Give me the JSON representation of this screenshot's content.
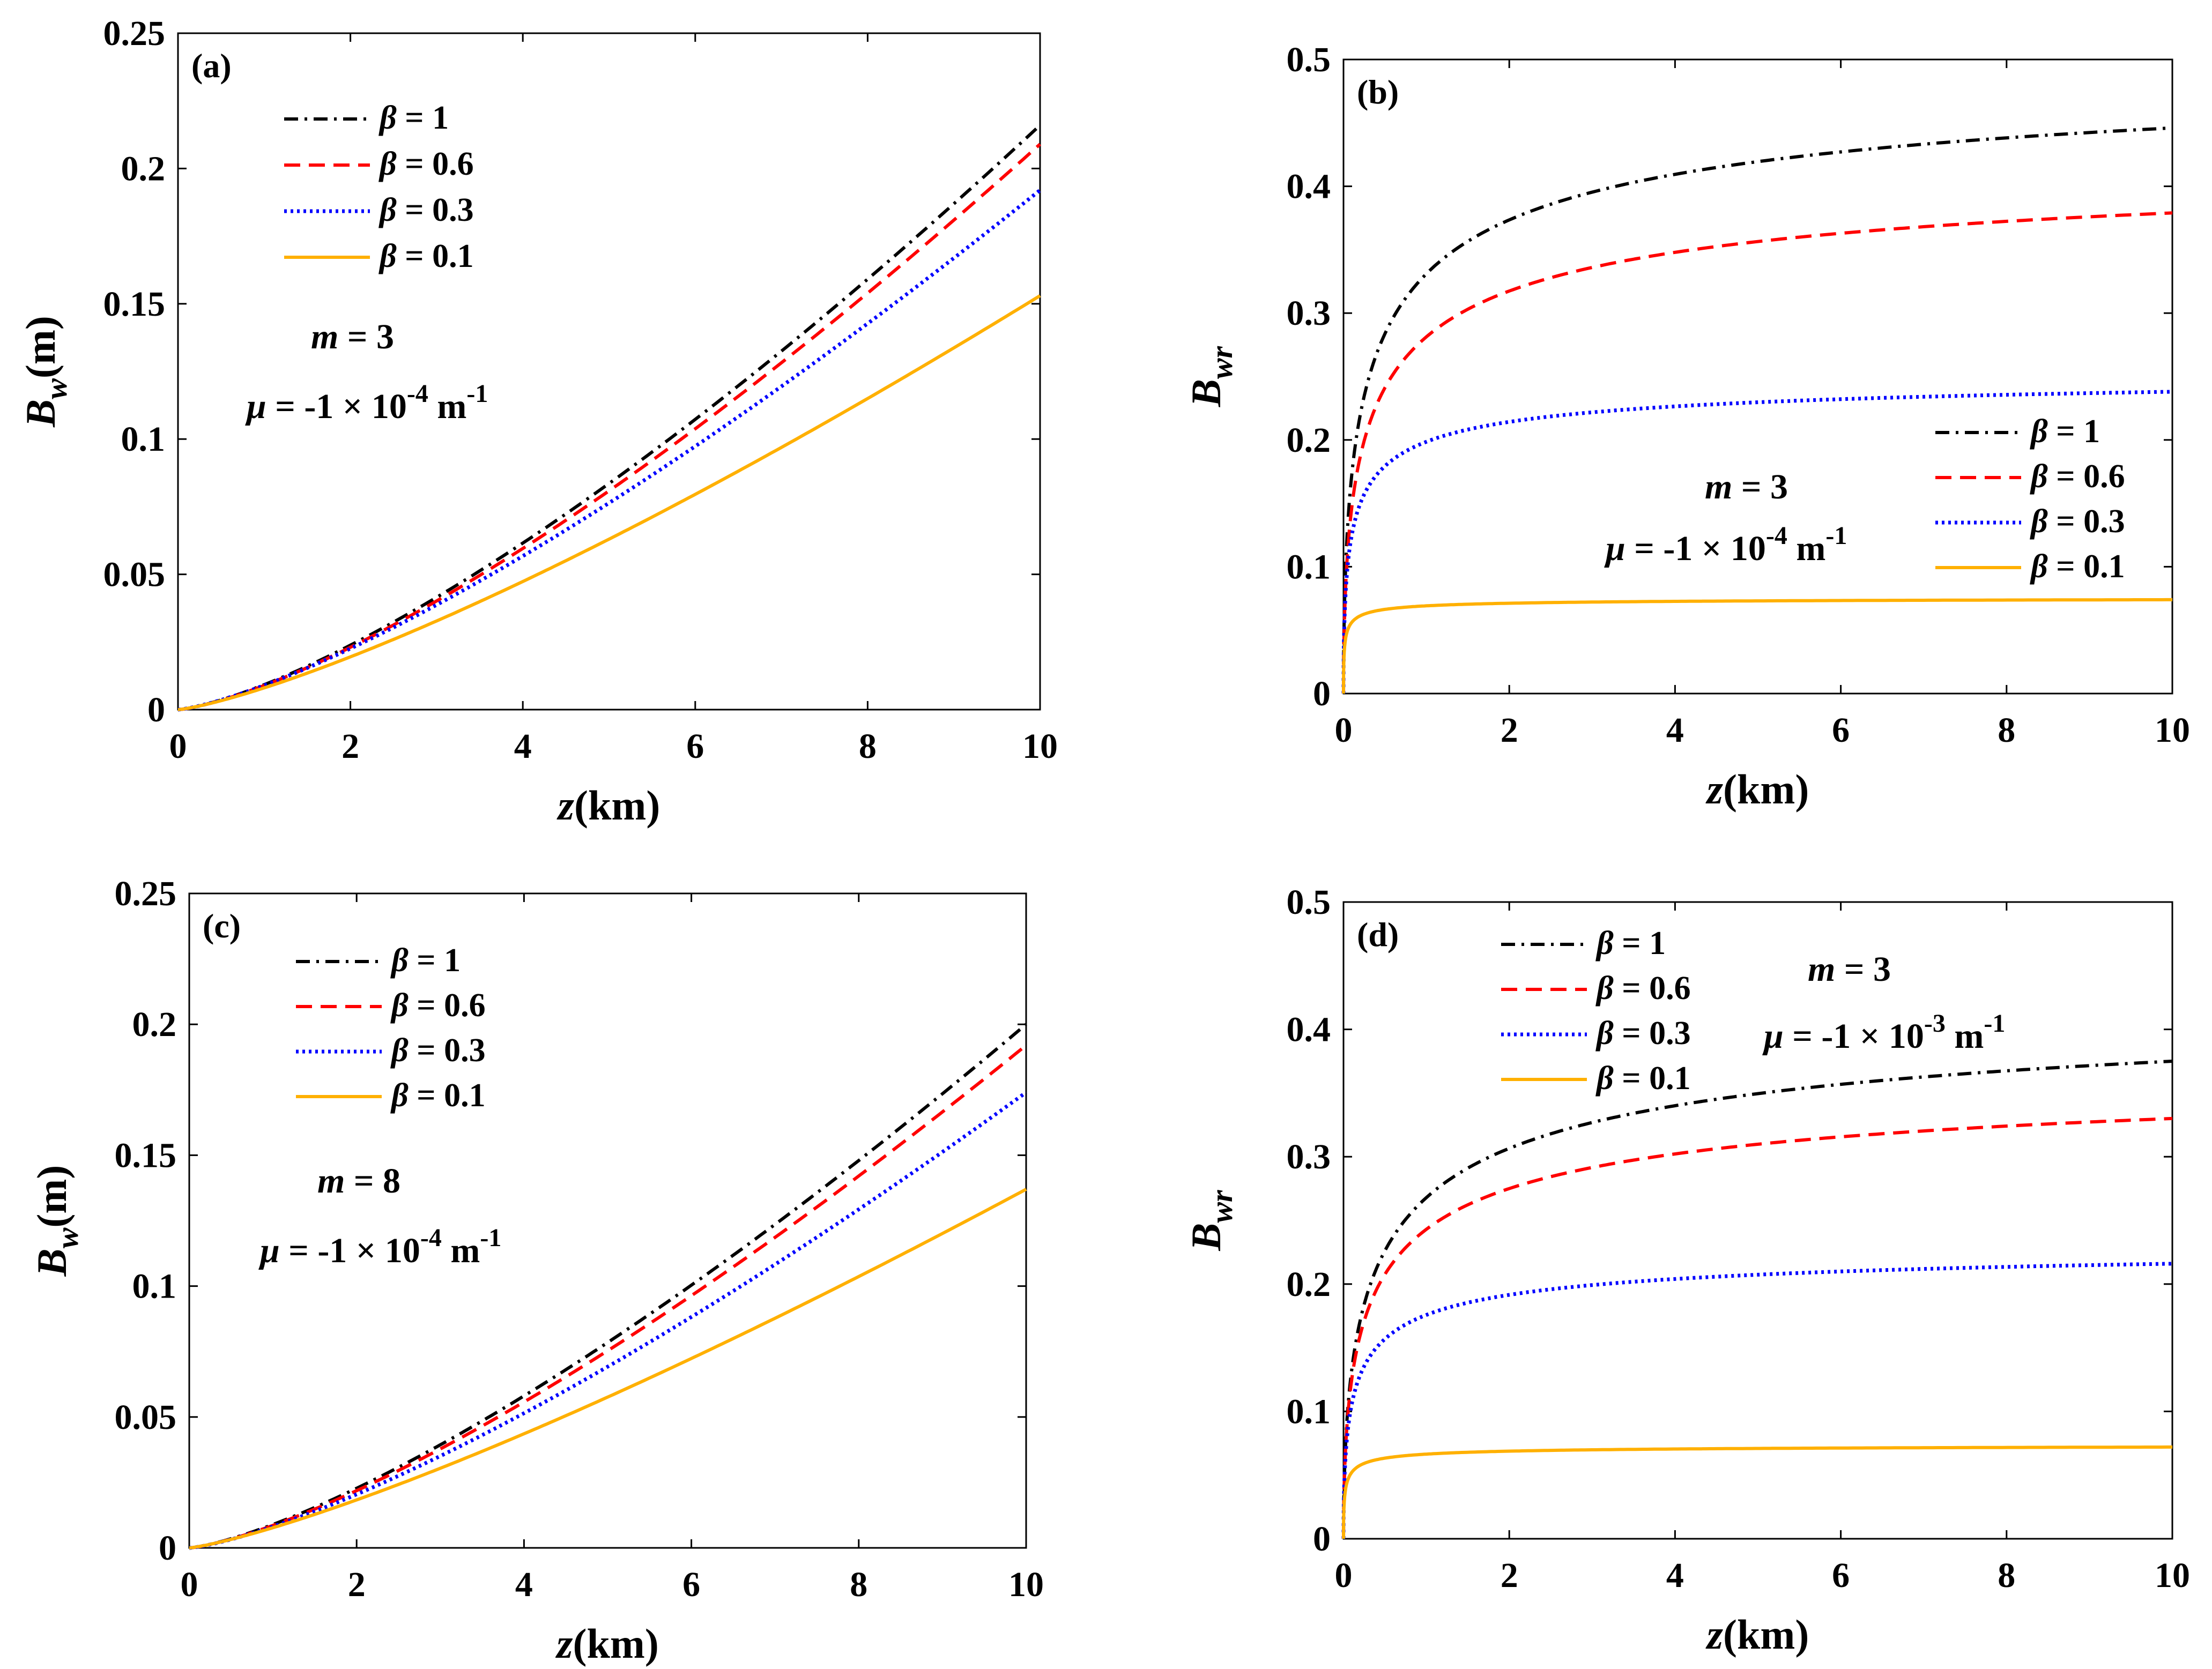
{
  "colors": {
    "beta_1": "#000000",
    "beta_0_6": "#ff0000",
    "beta_0_3": "#0000ff",
    "beta_0_1": "#ffb000"
  },
  "chart_data": [
    {
      "type": "line",
      "panel": "(a)",
      "xlabel": {
        "var": "z",
        "unit": "(km)"
      },
      "ylabel": {
        "main": "B",
        "sub": "w",
        "unit": "(m)"
      },
      "xlim": [
        0,
        10
      ],
      "ylim": [
        0,
        0.25
      ],
      "xticks": [
        "0",
        "2",
        "4",
        "6",
        "8",
        "10"
      ],
      "yticks": [
        "0",
        "0.05",
        "0.1",
        "0.15",
        "0.2",
        "0.25"
      ],
      "legend_position": "top-left",
      "annotation": {
        "m_label": "m",
        "m_value": "= 3",
        "mu_label": "μ",
        "mu_value": "= -1 × 10",
        "mu_exp": "-4",
        "mu_unit": "m",
        "mu_unit_exp": "-1"
      },
      "series": [
        {
          "name": "β = 1",
          "label": "= 1",
          "style": "dashdot",
          "color": "#000000",
          "shape": "pow",
          "end": 0.216,
          "power": 1.37
        },
        {
          "name": "β = 0.6",
          "label": "= 0.6",
          "style": "dashed",
          "color": "#ff0000",
          "shape": "pow",
          "end": 0.209,
          "power": 1.37
        },
        {
          "name": "β = 0.3",
          "label": "= 0.3",
          "style": "dotted",
          "color": "#0000ff",
          "shape": "pow",
          "end": 0.192,
          "power": 1.33
        },
        {
          "name": "β = 0.1",
          "label": "= 0.1",
          "style": "solid",
          "color": "#ffb000",
          "shape": "pow",
          "end": 0.153,
          "power": 1.28
        }
      ]
    },
    {
      "type": "line",
      "panel": "(b)",
      "xlabel": {
        "var": "z",
        "unit": "(km)"
      },
      "ylabel": {
        "main": "B",
        "sub": "wr",
        "unit": ""
      },
      "xlim": [
        0,
        10
      ],
      "ylim": [
        0,
        0.5
      ],
      "xticks": [
        "0",
        "2",
        "4",
        "6",
        "8",
        "10"
      ],
      "yticks": [
        "0",
        "0.1",
        "0.2",
        "0.3",
        "0.4",
        "0.5"
      ],
      "legend_position": "middle-right",
      "annotation": {
        "m_label": "m",
        "m_value": "= 3",
        "mu_label": "μ",
        "mu_value": "= -1 × 10",
        "mu_exp": "-4",
        "mu_unit": "m",
        "mu_unit_exp": "-1"
      },
      "series": [
        {
          "name": "β = 1",
          "label": "= 1",
          "style": "dashdot",
          "color": "#000000",
          "shape": "sat",
          "end": 0.446,
          "k": 0.56
        },
        {
          "name": "β = 0.6",
          "label": "= 0.6",
          "style": "dashed",
          "color": "#ff0000",
          "shape": "sat",
          "end": 0.379,
          "k": 0.56
        },
        {
          "name": "β = 0.3",
          "label": "= 0.3",
          "style": "dotted",
          "color": "#0000ff",
          "shape": "sat",
          "end": 0.238,
          "k": 0.3
        },
        {
          "name": "β = 0.1",
          "label": "= 0.1",
          "style": "solid",
          "color": "#ffb000",
          "shape": "sat",
          "end": 0.074,
          "k": 0.1
        }
      ]
    },
    {
      "type": "line",
      "panel": "(c)",
      "xlabel": {
        "var": "z",
        "unit": "(km)"
      },
      "ylabel": {
        "main": "B",
        "sub": "w",
        "unit": "(m)"
      },
      "xlim": [
        0,
        10
      ],
      "ylim": [
        0,
        0.25
      ],
      "xticks": [
        "0",
        "2",
        "4",
        "6",
        "8",
        "10"
      ],
      "yticks": [
        "0",
        "0.05",
        "0.1",
        "0.15",
        "0.2",
        "0.25"
      ],
      "legend_position": "top-left",
      "annotation": {
        "m_label": "m",
        "m_value": "= 8",
        "mu_label": "μ",
        "mu_value": "= -1 × 10",
        "mu_exp": "-4",
        "mu_unit": "m",
        "mu_unit_exp": "-1"
      },
      "series": [
        {
          "name": "β = 1",
          "label": "= 1",
          "style": "dashdot",
          "color": "#000000",
          "shape": "pow",
          "end": 0.2,
          "power": 1.35
        },
        {
          "name": "β = 0.6",
          "label": "= 0.6",
          "style": "dashed",
          "color": "#ff0000",
          "shape": "pow",
          "end": 0.192,
          "power": 1.35
        },
        {
          "name": "β = 0.3",
          "label": "= 0.3",
          "style": "dotted",
          "color": "#0000ff",
          "shape": "pow",
          "end": 0.174,
          "power": 1.33
        },
        {
          "name": "β = 0.1",
          "label": "= 0.1",
          "style": "solid",
          "color": "#ffb000",
          "shape": "pow",
          "end": 0.137,
          "power": 1.25
        }
      ]
    },
    {
      "type": "line",
      "panel": "(d)",
      "xlabel": {
        "var": "z",
        "unit": "(km)"
      },
      "ylabel": {
        "main": "B",
        "sub": "wr",
        "unit": ""
      },
      "xlim": [
        0,
        10
      ],
      "ylim": [
        0,
        0.5
      ],
      "xticks": [
        "0",
        "2",
        "4",
        "6",
        "8",
        "10"
      ],
      "yticks": [
        "0",
        "0.1",
        "0.2",
        "0.3",
        "0.4",
        "0.5"
      ],
      "legend_position": "top-left",
      "annotation": {
        "m_label": "m",
        "m_value": "= 3",
        "mu_label": "μ",
        "mu_value": "= -1 × 10",
        "mu_exp": "-3",
        "mu_unit": "m",
        "mu_unit_exp": "-1"
      },
      "series": [
        {
          "name": "β = 1",
          "label": "= 1",
          "style": "dashdot",
          "color": "#000000",
          "shape": "sat",
          "end": 0.375,
          "k": 0.66
        },
        {
          "name": "β = 0.6",
          "label": "= 0.6",
          "style": "dashed",
          "color": "#ff0000",
          "shape": "sat",
          "end": 0.33,
          "k": 0.58
        },
        {
          "name": "β = 0.3",
          "label": "= 0.3",
          "style": "dotted",
          "color": "#0000ff",
          "shape": "sat",
          "end": 0.216,
          "k": 0.35
        },
        {
          "name": "β = 0.1",
          "label": "= 0.1",
          "style": "solid",
          "color": "#ffb000",
          "shape": "sat",
          "end": 0.072,
          "k": 0.12
        }
      ]
    }
  ]
}
